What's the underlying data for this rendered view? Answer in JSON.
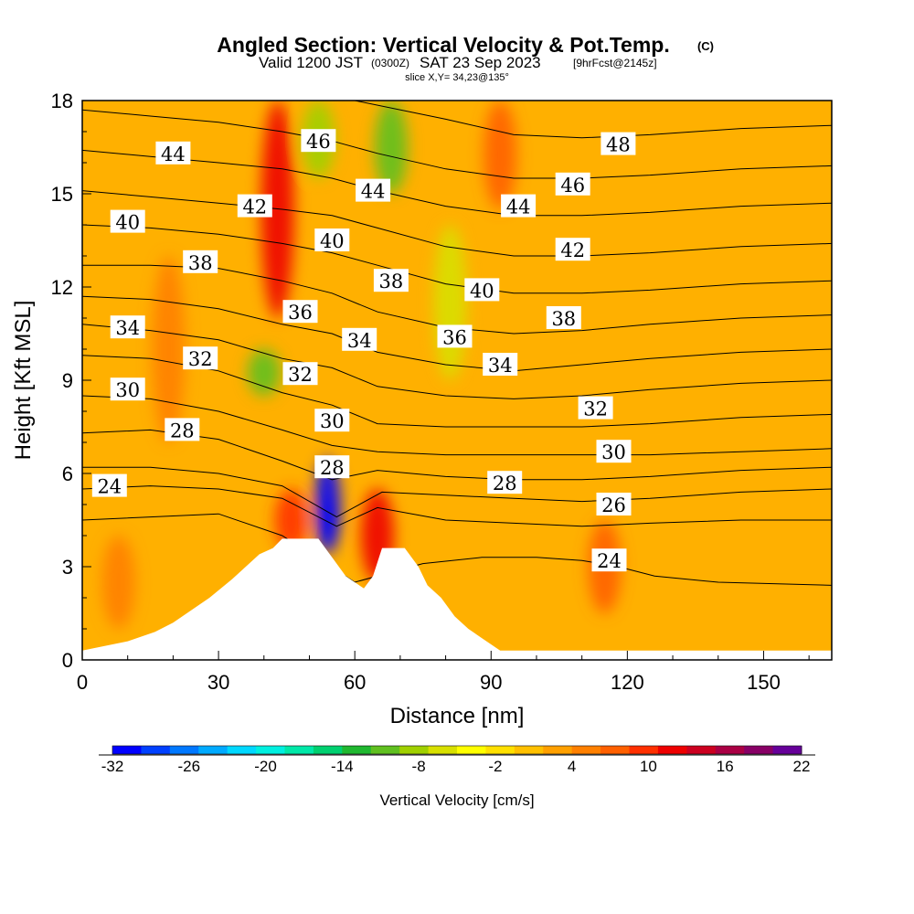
{
  "title": {
    "main": "Angled Section: Vertical Velocity & Pot.Temp.",
    "copyright": "(C)",
    "valid_prefix": "Valid 1200 JST",
    "valid_utc": "(0300Z)",
    "valid_date": "SAT 23 Sep 2023",
    "forecast": "[9hrFcst@2145z]",
    "slice": "slice X,Y= 34,23@135°"
  },
  "chart_data": {
    "type": "heatmap",
    "xlabel": "Distance [nm]",
    "ylabel": "Height [Kft MSL]",
    "xlim": [
      0,
      165
    ],
    "ylim": [
      0,
      18
    ],
    "x_ticks": [
      0,
      30,
      60,
      90,
      120,
      150
    ],
    "y_ticks": [
      0,
      3,
      6,
      9,
      12,
      15,
      18
    ],
    "colorbar": {
      "label": "Vertical Velocity [cm/s]",
      "ticks": [
        "-32",
        "-26",
        "-20",
        "-14",
        "-8",
        "-2",
        "4",
        "10",
        "16",
        "22"
      ],
      "colors": [
        "#0000ff",
        "#0040ff",
        "#0078ff",
        "#00aaff",
        "#00d8ff",
        "#00f0e0",
        "#00e8a8",
        "#00d070",
        "#20b830",
        "#60c020",
        "#a0d000",
        "#d8e000",
        "#ffff00",
        "#ffe000",
        "#ffc000",
        "#ffa000",
        "#ff8000",
        "#ff6000",
        "#ff3000",
        "#ee0000",
        "#cc0020",
        "#aa0044",
        "#880066",
        "#660099"
      ]
    },
    "velocity_features": [
      {
        "x": 43,
        "y_range": [
          11,
          18
        ],
        "value": 12,
        "kind": "updraft"
      },
      {
        "x": 68,
        "y_range": [
          15,
          18
        ],
        "value": -12,
        "kind": "downdraft"
      },
      {
        "x": 52,
        "y_range": [
          15.5,
          18
        ],
        "value": -8,
        "kind": "downdraft"
      },
      {
        "x": 81,
        "y_range": [
          9,
          14
        ],
        "value": -6,
        "kind": "downdraft"
      },
      {
        "x": 92,
        "y_range": [
          14.5,
          18
        ],
        "value": 8,
        "kind": "updraft"
      },
      {
        "x": 54,
        "y_range": [
          3.4,
          6.5
        ],
        "value": -32,
        "kind": "downdraft"
      },
      {
        "x": 46,
        "y_range": [
          3.5,
          5.5
        ],
        "value": 10,
        "kind": "updraft"
      },
      {
        "x": 65,
        "y_range": [
          2.5,
          5.5
        ],
        "value": 12,
        "kind": "updraft"
      },
      {
        "x": 115,
        "y_range": [
          1.5,
          4.5
        ],
        "value": 9,
        "kind": "updraft"
      },
      {
        "x": 8,
        "y_range": [
          1,
          4
        ],
        "value": 6,
        "kind": "updraft"
      },
      {
        "x": 19,
        "y_range": [
          7,
          13
        ],
        "value": 6,
        "kind": "updraft"
      },
      {
        "x": 40,
        "y_range": [
          8.5,
          10
        ],
        "value": -10,
        "kind": "downdraft"
      }
    ],
    "terrain": [
      [
        0,
        0.3
      ],
      [
        10,
        0.6
      ],
      [
        16,
        0.9
      ],
      [
        20,
        1.2
      ],
      [
        24,
        1.6
      ],
      [
        28,
        2.0
      ],
      [
        33,
        2.6
      ],
      [
        36,
        3.0
      ],
      [
        39,
        3.4
      ],
      [
        42,
        3.6
      ],
      [
        44,
        3.9
      ],
      [
        52,
        3.9
      ],
      [
        55,
        3.3
      ],
      [
        58,
        2.7
      ],
      [
        62,
        2.3
      ],
      [
        64,
        2.7
      ],
      [
        66,
        3.6
      ],
      [
        71,
        3.6
      ],
      [
        74,
        3.0
      ],
      [
        76,
        2.4
      ],
      [
        79,
        2.0
      ],
      [
        82,
        1.4
      ],
      [
        85,
        1.0
      ],
      [
        88,
        0.7
      ],
      [
        92,
        0.3
      ],
      [
        165,
        0.3
      ]
    ],
    "isentropes": [
      {
        "theta": 24,
        "label_x": 116,
        "label_y": 3.2,
        "pts": [
          [
            0,
            4.5
          ],
          [
            15,
            4.6
          ],
          [
            30,
            4.7
          ],
          [
            44,
            4.0
          ],
          [
            60,
            2.5
          ],
          [
            75,
            3.1
          ],
          [
            88,
            3.3
          ],
          [
            100,
            3.3
          ],
          [
            110,
            3.2
          ],
          [
            118,
            3.0
          ],
          [
            126,
            2.7
          ],
          [
            140,
            2.5
          ],
          [
            165,
            2.4
          ]
        ]
      },
      {
        "theta": 24,
        "label_x": 6,
        "label_y": 5.6,
        "pts": [
          [
            0,
            5.5
          ],
          [
            15,
            5.6
          ],
          [
            30,
            5.5
          ],
          [
            44,
            5.2
          ],
          [
            56,
            4.3
          ],
          [
            65,
            4.9
          ],
          [
            80,
            4.5
          ],
          [
            95,
            4.4
          ],
          [
            110,
            4.3
          ],
          [
            125,
            4.4
          ],
          [
            145,
            4.5
          ],
          [
            165,
            4.5
          ]
        ]
      },
      {
        "theta": 26,
        "label_x": 117,
        "label_y": 5.0,
        "pts": [
          [
            0,
            6.2
          ],
          [
            15,
            6.2
          ],
          [
            30,
            6.0
          ],
          [
            44,
            5.6
          ],
          [
            56,
            4.6
          ],
          [
            66,
            5.4
          ],
          [
            80,
            5.3
          ],
          [
            95,
            5.2
          ],
          [
            110,
            5.1
          ],
          [
            125,
            5.2
          ],
          [
            145,
            5.4
          ],
          [
            165,
            5.5
          ]
        ]
      },
      {
        "theta": 28,
        "label_x": 22,
        "label_y": 7.4,
        "pts": [
          [
            0,
            7.3
          ],
          [
            15,
            7.4
          ],
          [
            30,
            7.1
          ],
          [
            44,
            6.4
          ],
          [
            55,
            5.8
          ],
          [
            65,
            6.1
          ],
          [
            80,
            5.9
          ],
          [
            95,
            5.8
          ],
          [
            110,
            5.8
          ],
          [
            125,
            5.9
          ],
          [
            145,
            6.1
          ],
          [
            165,
            6.2
          ]
        ]
      },
      {
        "theta": 30,
        "label_x": 10,
        "label_y": 8.7,
        "pts": [
          [
            0,
            8.5
          ],
          [
            15,
            8.4
          ],
          [
            30,
            8.0
          ],
          [
            44,
            7.4
          ],
          [
            55,
            6.9
          ],
          [
            65,
            6.7
          ],
          [
            80,
            6.6
          ],
          [
            95,
            6.6
          ],
          [
            110,
            6.6
          ],
          [
            125,
            6.6
          ],
          [
            145,
            6.7
          ],
          [
            165,
            6.8
          ]
        ]
      },
      {
        "theta": 32,
        "label_x": 26,
        "label_y": 9.7,
        "pts": [
          [
            0,
            9.8
          ],
          [
            15,
            9.7
          ],
          [
            30,
            9.3
          ],
          [
            44,
            8.6
          ],
          [
            55,
            8.2
          ],
          [
            65,
            7.6
          ],
          [
            80,
            7.5
          ],
          [
            95,
            7.5
          ],
          [
            110,
            7.5
          ],
          [
            125,
            7.6
          ],
          [
            145,
            7.8
          ],
          [
            165,
            7.9
          ]
        ]
      },
      {
        "theta": 34,
        "label_x": 10,
        "label_y": 10.7,
        "pts": [
          [
            0,
            10.8
          ],
          [
            15,
            10.6
          ],
          [
            30,
            10.3
          ],
          [
            44,
            9.7
          ],
          [
            55,
            9.4
          ],
          [
            65,
            8.8
          ],
          [
            80,
            8.5
          ],
          [
            95,
            8.4
          ],
          [
            110,
            8.5
          ],
          [
            125,
            8.7
          ],
          [
            145,
            8.9
          ],
          [
            165,
            9.0
          ]
        ]
      },
      {
        "theta": 36,
        "label_x": 48,
        "label_y": 11.2,
        "pts": [
          [
            0,
            11.7
          ],
          [
            15,
            11.6
          ],
          [
            30,
            11.3
          ],
          [
            44,
            10.8
          ],
          [
            55,
            10.5
          ],
          [
            65,
            9.9
          ],
          [
            80,
            9.5
          ],
          [
            95,
            9.3
          ],
          [
            110,
            9.5
          ],
          [
            125,
            9.7
          ],
          [
            145,
            9.9
          ],
          [
            165,
            10.0
          ]
        ]
      },
      {
        "theta": 38,
        "label_x": 26,
        "label_y": 12.8,
        "pts": [
          [
            0,
            12.7
          ],
          [
            15,
            12.7
          ],
          [
            30,
            12.6
          ],
          [
            44,
            12.2
          ],
          [
            55,
            11.8
          ],
          [
            65,
            11.2
          ],
          [
            80,
            10.7
          ],
          [
            95,
            10.5
          ],
          [
            110,
            10.6
          ],
          [
            125,
            10.8
          ],
          [
            145,
            11.0
          ],
          [
            165,
            11.1
          ]
        ]
      },
      {
        "theta": 40,
        "label_x": 10,
        "label_y": 14.1,
        "pts": [
          [
            0,
            14.0
          ],
          [
            15,
            13.9
          ],
          [
            30,
            13.7
          ],
          [
            44,
            13.4
          ],
          [
            55,
            13.1
          ],
          [
            65,
            12.7
          ],
          [
            80,
            12.1
          ],
          [
            95,
            11.8
          ],
          [
            110,
            11.8
          ],
          [
            125,
            11.9
          ],
          [
            145,
            12.1
          ],
          [
            165,
            12.2
          ]
        ]
      },
      {
        "theta": 42,
        "label_x": 38,
        "label_y": 14.6,
        "pts": [
          [
            0,
            15.1
          ],
          [
            15,
            14.9
          ],
          [
            30,
            14.7
          ],
          [
            44,
            14.5
          ],
          [
            55,
            14.3
          ],
          [
            65,
            13.9
          ],
          [
            80,
            13.3
          ],
          [
            95,
            13.0
          ],
          [
            110,
            13.0
          ],
          [
            125,
            13.1
          ],
          [
            145,
            13.3
          ],
          [
            165,
            13.4
          ]
        ]
      },
      {
        "theta": 44,
        "label_x": 20,
        "label_y": 16.3,
        "pts": [
          [
            0,
            16.4
          ],
          [
            15,
            16.2
          ],
          [
            30,
            16.0
          ],
          [
            44,
            15.8
          ],
          [
            55,
            15.5
          ],
          [
            65,
            15.1
          ],
          [
            80,
            14.6
          ],
          [
            95,
            14.3
          ],
          [
            110,
            14.3
          ],
          [
            125,
            14.4
          ],
          [
            145,
            14.6
          ],
          [
            165,
            14.7
          ]
        ]
      },
      {
        "theta": 46,
        "label_x": 52,
        "label_y": 16.7,
        "pts": [
          [
            0,
            17.7
          ],
          [
            15,
            17.5
          ],
          [
            30,
            17.3
          ],
          [
            44,
            17.0
          ],
          [
            55,
            16.7
          ],
          [
            65,
            16.3
          ],
          [
            80,
            15.8
          ],
          [
            95,
            15.5
          ],
          [
            110,
            15.5
          ],
          [
            125,
            15.6
          ],
          [
            145,
            15.8
          ],
          [
            165,
            15.9
          ]
        ]
      },
      {
        "theta": 48,
        "label_x": 118,
        "label_y": 16.6,
        "pts": [
          [
            60,
            18.0
          ],
          [
            80,
            17.4
          ],
          [
            95,
            16.9
          ],
          [
            110,
            16.8
          ],
          [
            125,
            16.9
          ],
          [
            145,
            17.1
          ],
          [
            165,
            17.2
          ]
        ]
      }
    ],
    "extra_labels": [
      {
        "text": "46",
        "x": 108,
        "y": 15.3
      },
      {
        "text": "44",
        "x": 64,
        "y": 15.1
      },
      {
        "text": "44",
        "x": 96,
        "y": 14.6
      },
      {
        "text": "42",
        "x": 108,
        "y": 13.2
      },
      {
        "text": "40",
        "x": 55,
        "y": 13.5
      },
      {
        "text": "40",
        "x": 88,
        "y": 11.9
      },
      {
        "text": "38",
        "x": 68,
        "y": 12.2
      },
      {
        "text": "38",
        "x": 106,
        "y": 11.0
      },
      {
        "text": "36",
        "x": 82,
        "y": 10.4
      },
      {
        "text": "34",
        "x": 61,
        "y": 10.3
      },
      {
        "text": "34",
        "x": 92,
        "y": 9.5
      },
      {
        "text": "32",
        "x": 48,
        "y": 9.2
      },
      {
        "text": "32",
        "x": 113,
        "y": 8.1
      },
      {
        "text": "30",
        "x": 55,
        "y": 7.7
      },
      {
        "text": "30",
        "x": 117,
        "y": 6.7
      },
      {
        "text": "28",
        "x": 55,
        "y": 6.2
      },
      {
        "text": "28",
        "x": 93,
        "y": 5.7
      }
    ]
  }
}
